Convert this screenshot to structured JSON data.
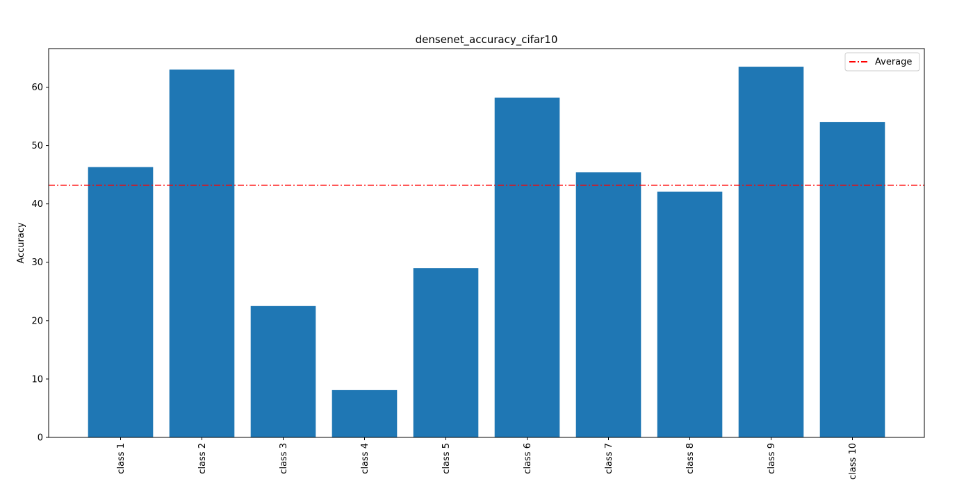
{
  "chart_data": {
    "type": "bar",
    "title": "densenet_accuracy_cifar10",
    "xlabel": "",
    "ylabel": "Accuracy",
    "categories": [
      "class 1",
      "class 2",
      "class 3",
      "class 4",
      "class 5",
      "class 6",
      "class 7",
      "class 8",
      "class 9",
      "class 10"
    ],
    "values": [
      46.3,
      63.0,
      22.5,
      8.1,
      29.0,
      58.2,
      45.4,
      42.1,
      63.5,
      54.0
    ],
    "ylim": [
      0,
      66.6
    ],
    "yticks": [
      0,
      10,
      20,
      30,
      40,
      50,
      60
    ],
    "grid": false,
    "legend_position": "top-right",
    "reference_line": {
      "label": "Average",
      "value": 43.2,
      "style": "dash-dot"
    },
    "colors": {
      "bar": "#1f77b4",
      "average_line": "#ff0000"
    }
  }
}
